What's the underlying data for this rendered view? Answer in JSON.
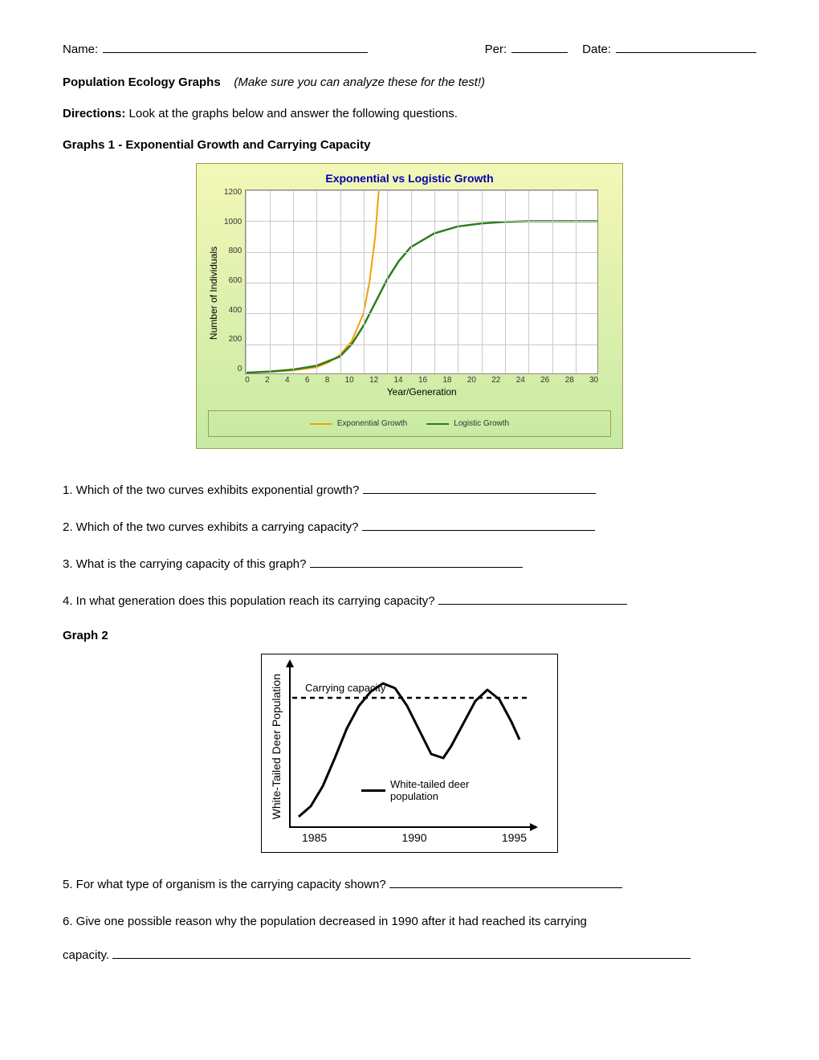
{
  "header": {
    "name_label": "Name:",
    "per_label": "Per:",
    "date_label": "Date:"
  },
  "title": {
    "main": "Population Ecology Graphs",
    "note": "(Make sure you can analyze these for the test!)"
  },
  "directions_label": "Directions:",
  "directions_text": " Look at the graphs below and answer the following questions.",
  "section1_heading": "Graphs 1 - Exponential Growth and Carrying Capacity",
  "chart1": {
    "title": "Exponential vs Logistic Growth",
    "ylabel": "Number of Individuals",
    "xlabel": "Year/Generation",
    "xlim": [
      0,
      30
    ],
    "ylim": [
      0,
      1200
    ],
    "xticks": [
      0,
      2,
      4,
      6,
      8,
      10,
      12,
      14,
      16,
      18,
      20,
      22,
      24,
      26,
      28,
      30
    ],
    "yticks": [
      0,
      200,
      400,
      600,
      800,
      1000,
      1200
    ],
    "grid_color": "#c8c8c8",
    "plot_bg": "#ffffff",
    "panel_gradient_top": "#f4f7b7",
    "panel_gradient_bottom": "#c7eaa3",
    "series": {
      "exponential": {
        "label": "Exponential Growth",
        "color": "#f2a100",
        "width": 2,
        "points": [
          [
            0,
            15
          ],
          [
            2,
            20
          ],
          [
            4,
            30
          ],
          [
            6,
            50
          ],
          [
            7,
            80
          ],
          [
            8,
            130
          ],
          [
            9,
            220
          ],
          [
            10,
            400
          ],
          [
            10.5,
            600
          ],
          [
            11,
            900
          ],
          [
            11.3,
            1200
          ]
        ]
      },
      "logistic": {
        "label": "Logistic Growth",
        "color": "#2e7d1e",
        "width": 2.5,
        "points": [
          [
            0,
            15
          ],
          [
            2,
            22
          ],
          [
            4,
            35
          ],
          [
            6,
            60
          ],
          [
            8,
            120
          ],
          [
            9,
            200
          ],
          [
            10,
            320
          ],
          [
            11,
            470
          ],
          [
            12,
            620
          ],
          [
            13,
            740
          ],
          [
            14,
            830
          ],
          [
            16,
            920
          ],
          [
            18,
            965
          ],
          [
            20,
            985
          ],
          [
            22,
            995
          ],
          [
            24,
            1000
          ],
          [
            26,
            1000
          ],
          [
            28,
            1000
          ],
          [
            30,
            1000
          ]
        ]
      }
    }
  },
  "questions_a": {
    "q1": "1. Which of the two curves exhibits exponential growth? ",
    "q2": "2. Which of the two curves exhibits a carrying capacity? ",
    "q3": "3. What is the carrying capacity of this graph? ",
    "q4": "4. In what generation does this population reach its carrying capacity? "
  },
  "section2_heading": "Graph 2",
  "chart2": {
    "ylabel": "White-Tailed Deer Population",
    "xticks": [
      "1985",
      "1990",
      "1995"
    ],
    "carrying_label": "Carrying capacity",
    "legend_label": "White-tailed deer population",
    "cc_y": 40,
    "line_color": "#000000",
    "line_width": 3,
    "dash_pattern": "6,5",
    "curve_points": [
      [
        10,
        188
      ],
      [
        25,
        175
      ],
      [
        40,
        150
      ],
      [
        55,
        115
      ],
      [
        70,
        78
      ],
      [
        85,
        50
      ],
      [
        100,
        32
      ],
      [
        115,
        22
      ],
      [
        130,
        28
      ],
      [
        145,
        50
      ],
      [
        160,
        80
      ],
      [
        175,
        110
      ],
      [
        190,
        115
      ],
      [
        200,
        100
      ],
      [
        215,
        72
      ],
      [
        230,
        44
      ],
      [
        245,
        30
      ],
      [
        260,
        42
      ],
      [
        275,
        70
      ],
      [
        285,
        92
      ]
    ]
  },
  "questions_b": {
    "q5": "5. For what type of organism is the carrying capacity shown? ",
    "q6a": "6. Give one possible reason why the population decreased in 1990 after it had reached its carrying",
    "q6b": "capacity. "
  }
}
